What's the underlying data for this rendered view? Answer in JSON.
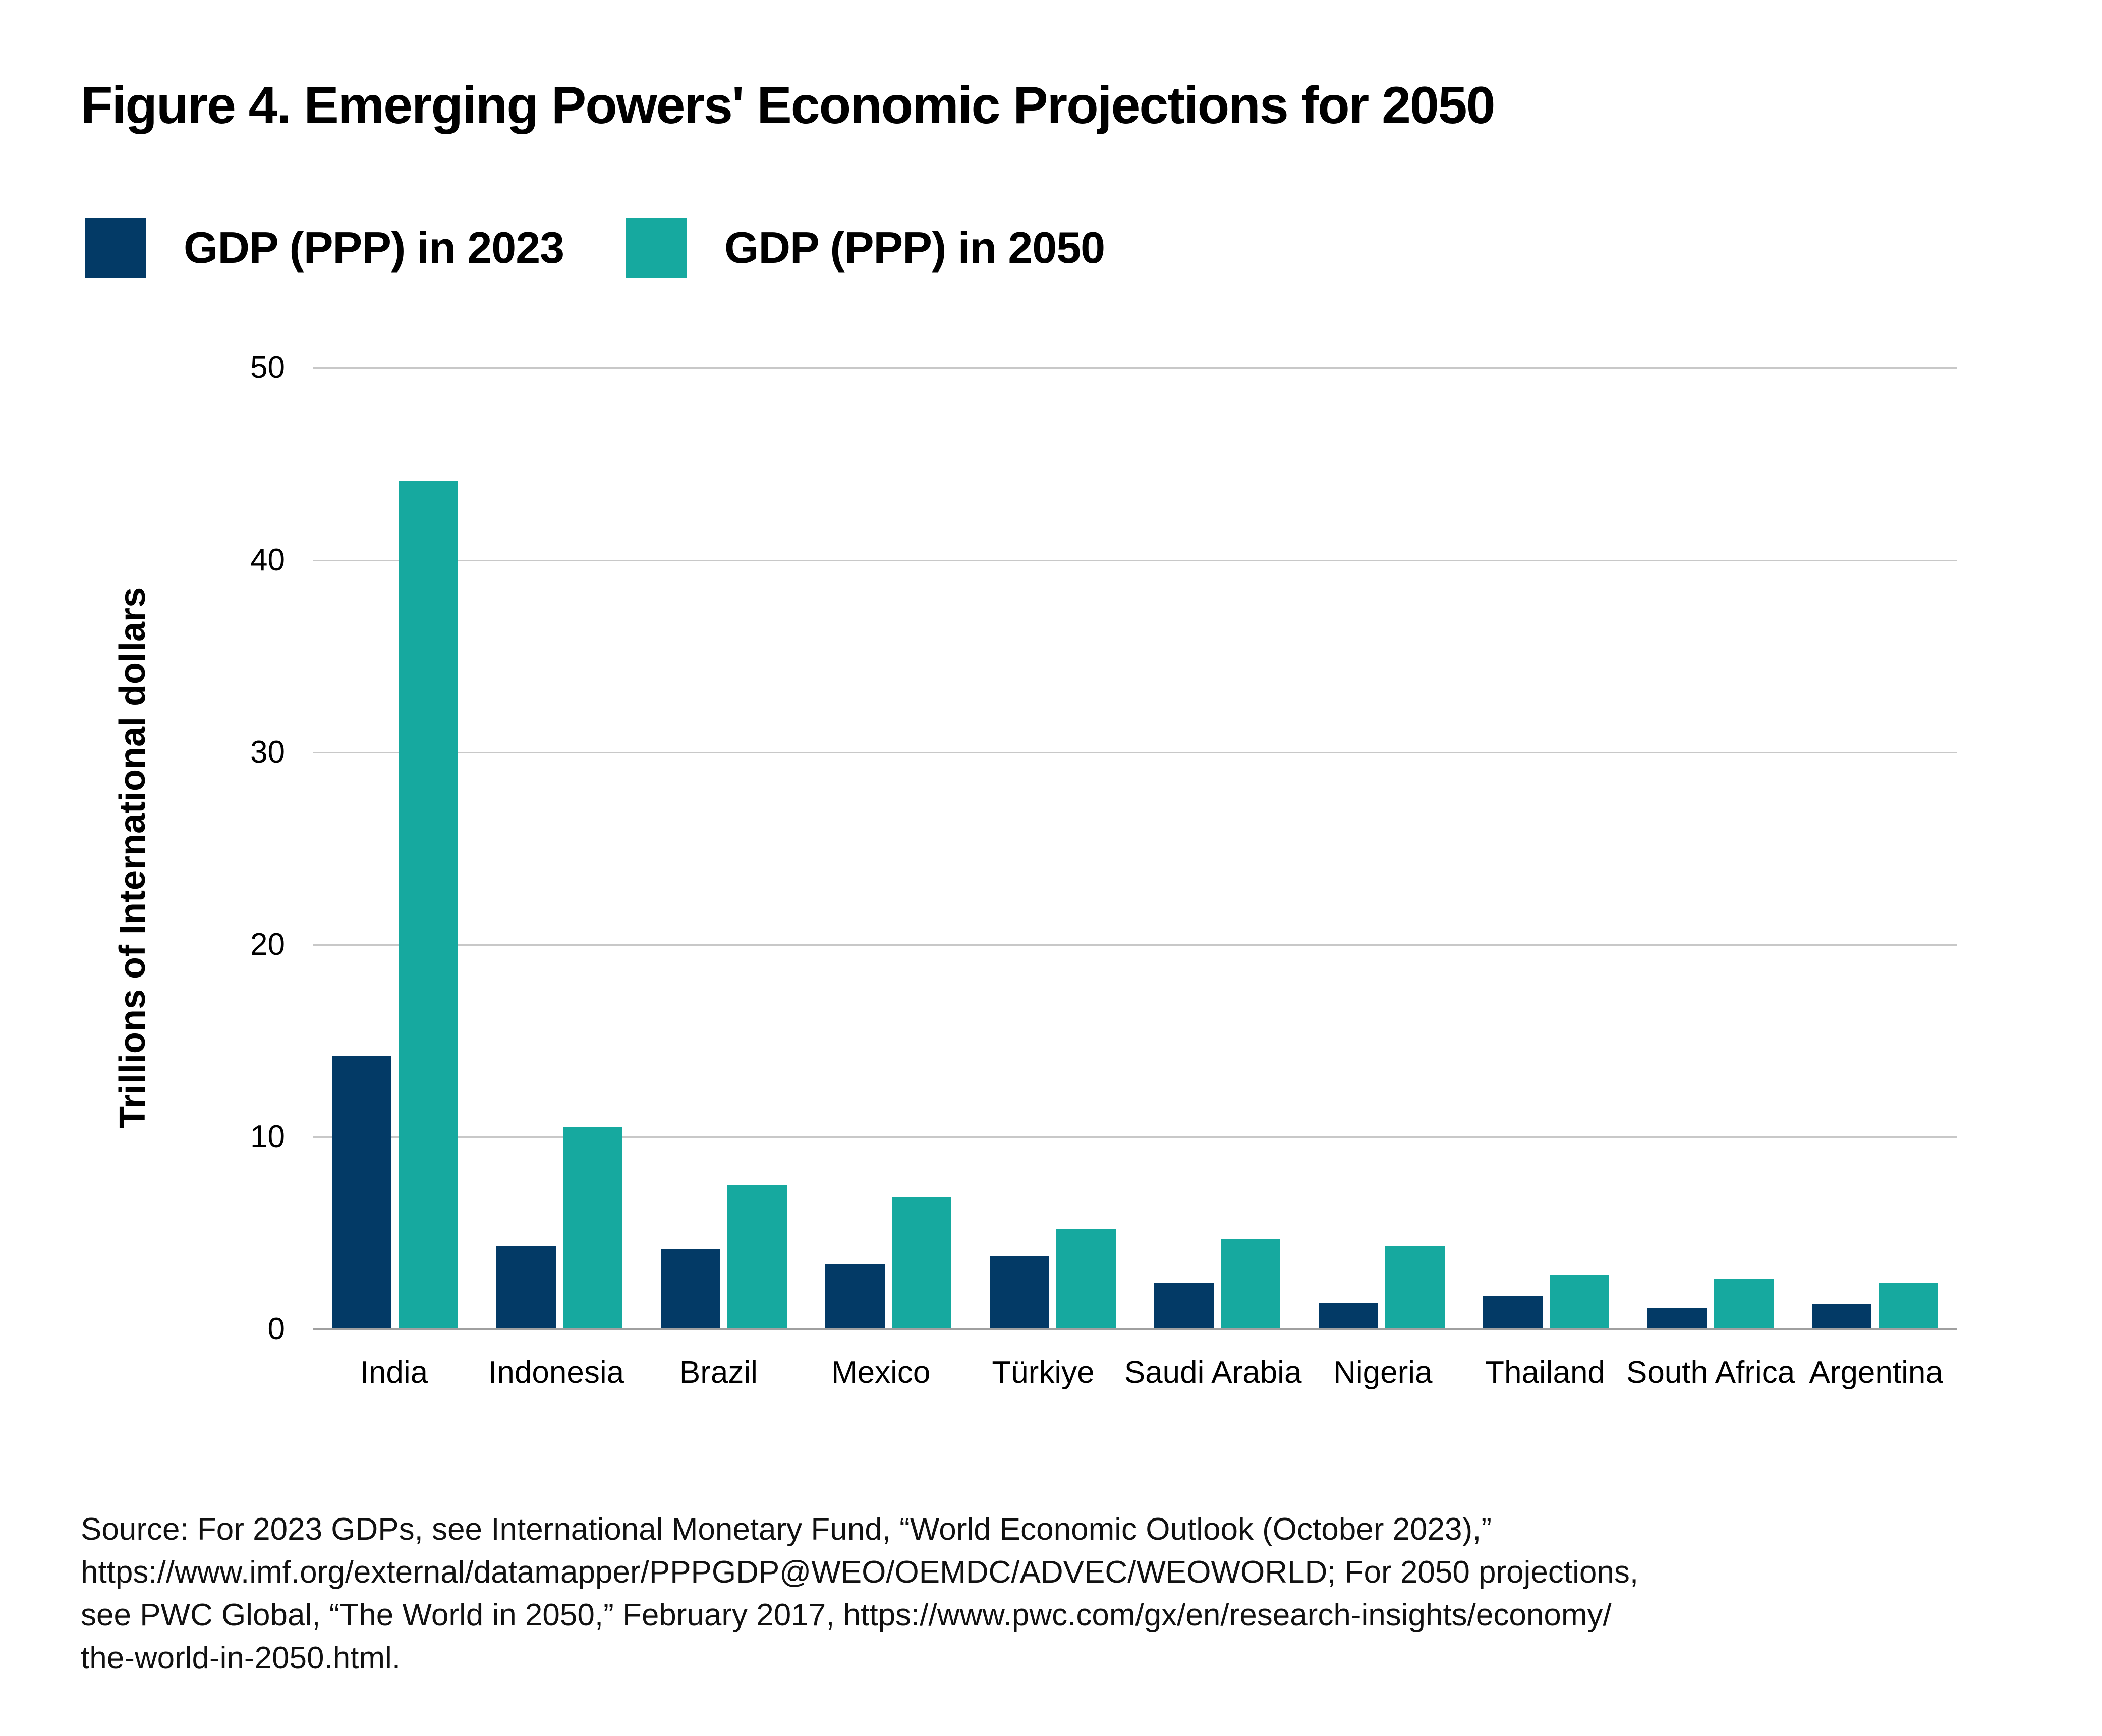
{
  "figure": {
    "title": "Figure 4. Emerging Powers' Economic Projections for 2050",
    "source_text": "Source: For 2023 GDPs, see International Monetary Fund, “World Economic Outlook (October 2023),”\nhttps://www.imf.org/external/datamapper/PPPGDP@WEO/OEMDC/ADVEC/WEOWORLD; For 2050 projections,\nsee PWC Global, “The World in 2050,” February 2017, https://www.pwc.com/gx/en/research-insights/economy/\nthe-world-in-2050.html."
  },
  "legend": [
    {
      "label": "GDP (PPP) in 2023",
      "color": "#033a66"
    },
    {
      "label": "GDP (PPP) in 2050",
      "color": "#16a99f"
    }
  ],
  "chart_data": {
    "type": "bar",
    "title": "Figure 4. Emerging Powers' Economic Projections for 2050",
    "xlabel": "",
    "ylabel": "Trillions of International dollars",
    "ylim": [
      0,
      50
    ],
    "yticks": [
      0,
      10,
      20,
      30,
      40,
      50
    ],
    "grid": "horizontal",
    "legend_position": "top-left",
    "categories": [
      "India",
      "Indonesia",
      "Brazil",
      "Mexico",
      "Türkiye",
      "Saudi Arabia",
      "Nigeria",
      "Thailand",
      "South Africa",
      "Argentina"
    ],
    "series": [
      {
        "name": "GDP (PPP) in 2023",
        "color": "#033a66",
        "values": [
          14.2,
          4.3,
          4.2,
          3.4,
          3.8,
          2.4,
          1.4,
          1.7,
          1.1,
          1.3
        ]
      },
      {
        "name": "GDP (PPP) in 2050",
        "color": "#16a99f",
        "values": [
          44.1,
          10.5,
          7.5,
          6.9,
          5.2,
          4.7,
          4.3,
          2.8,
          2.6,
          2.4
        ]
      }
    ]
  },
  "colors": {
    "series_2023": "#033a66",
    "series_2050": "#16a99f",
    "gridline": "#c8c8c8",
    "axis_line": "#a0a0a0",
    "text": "#111111",
    "background": "#ffffff"
  }
}
